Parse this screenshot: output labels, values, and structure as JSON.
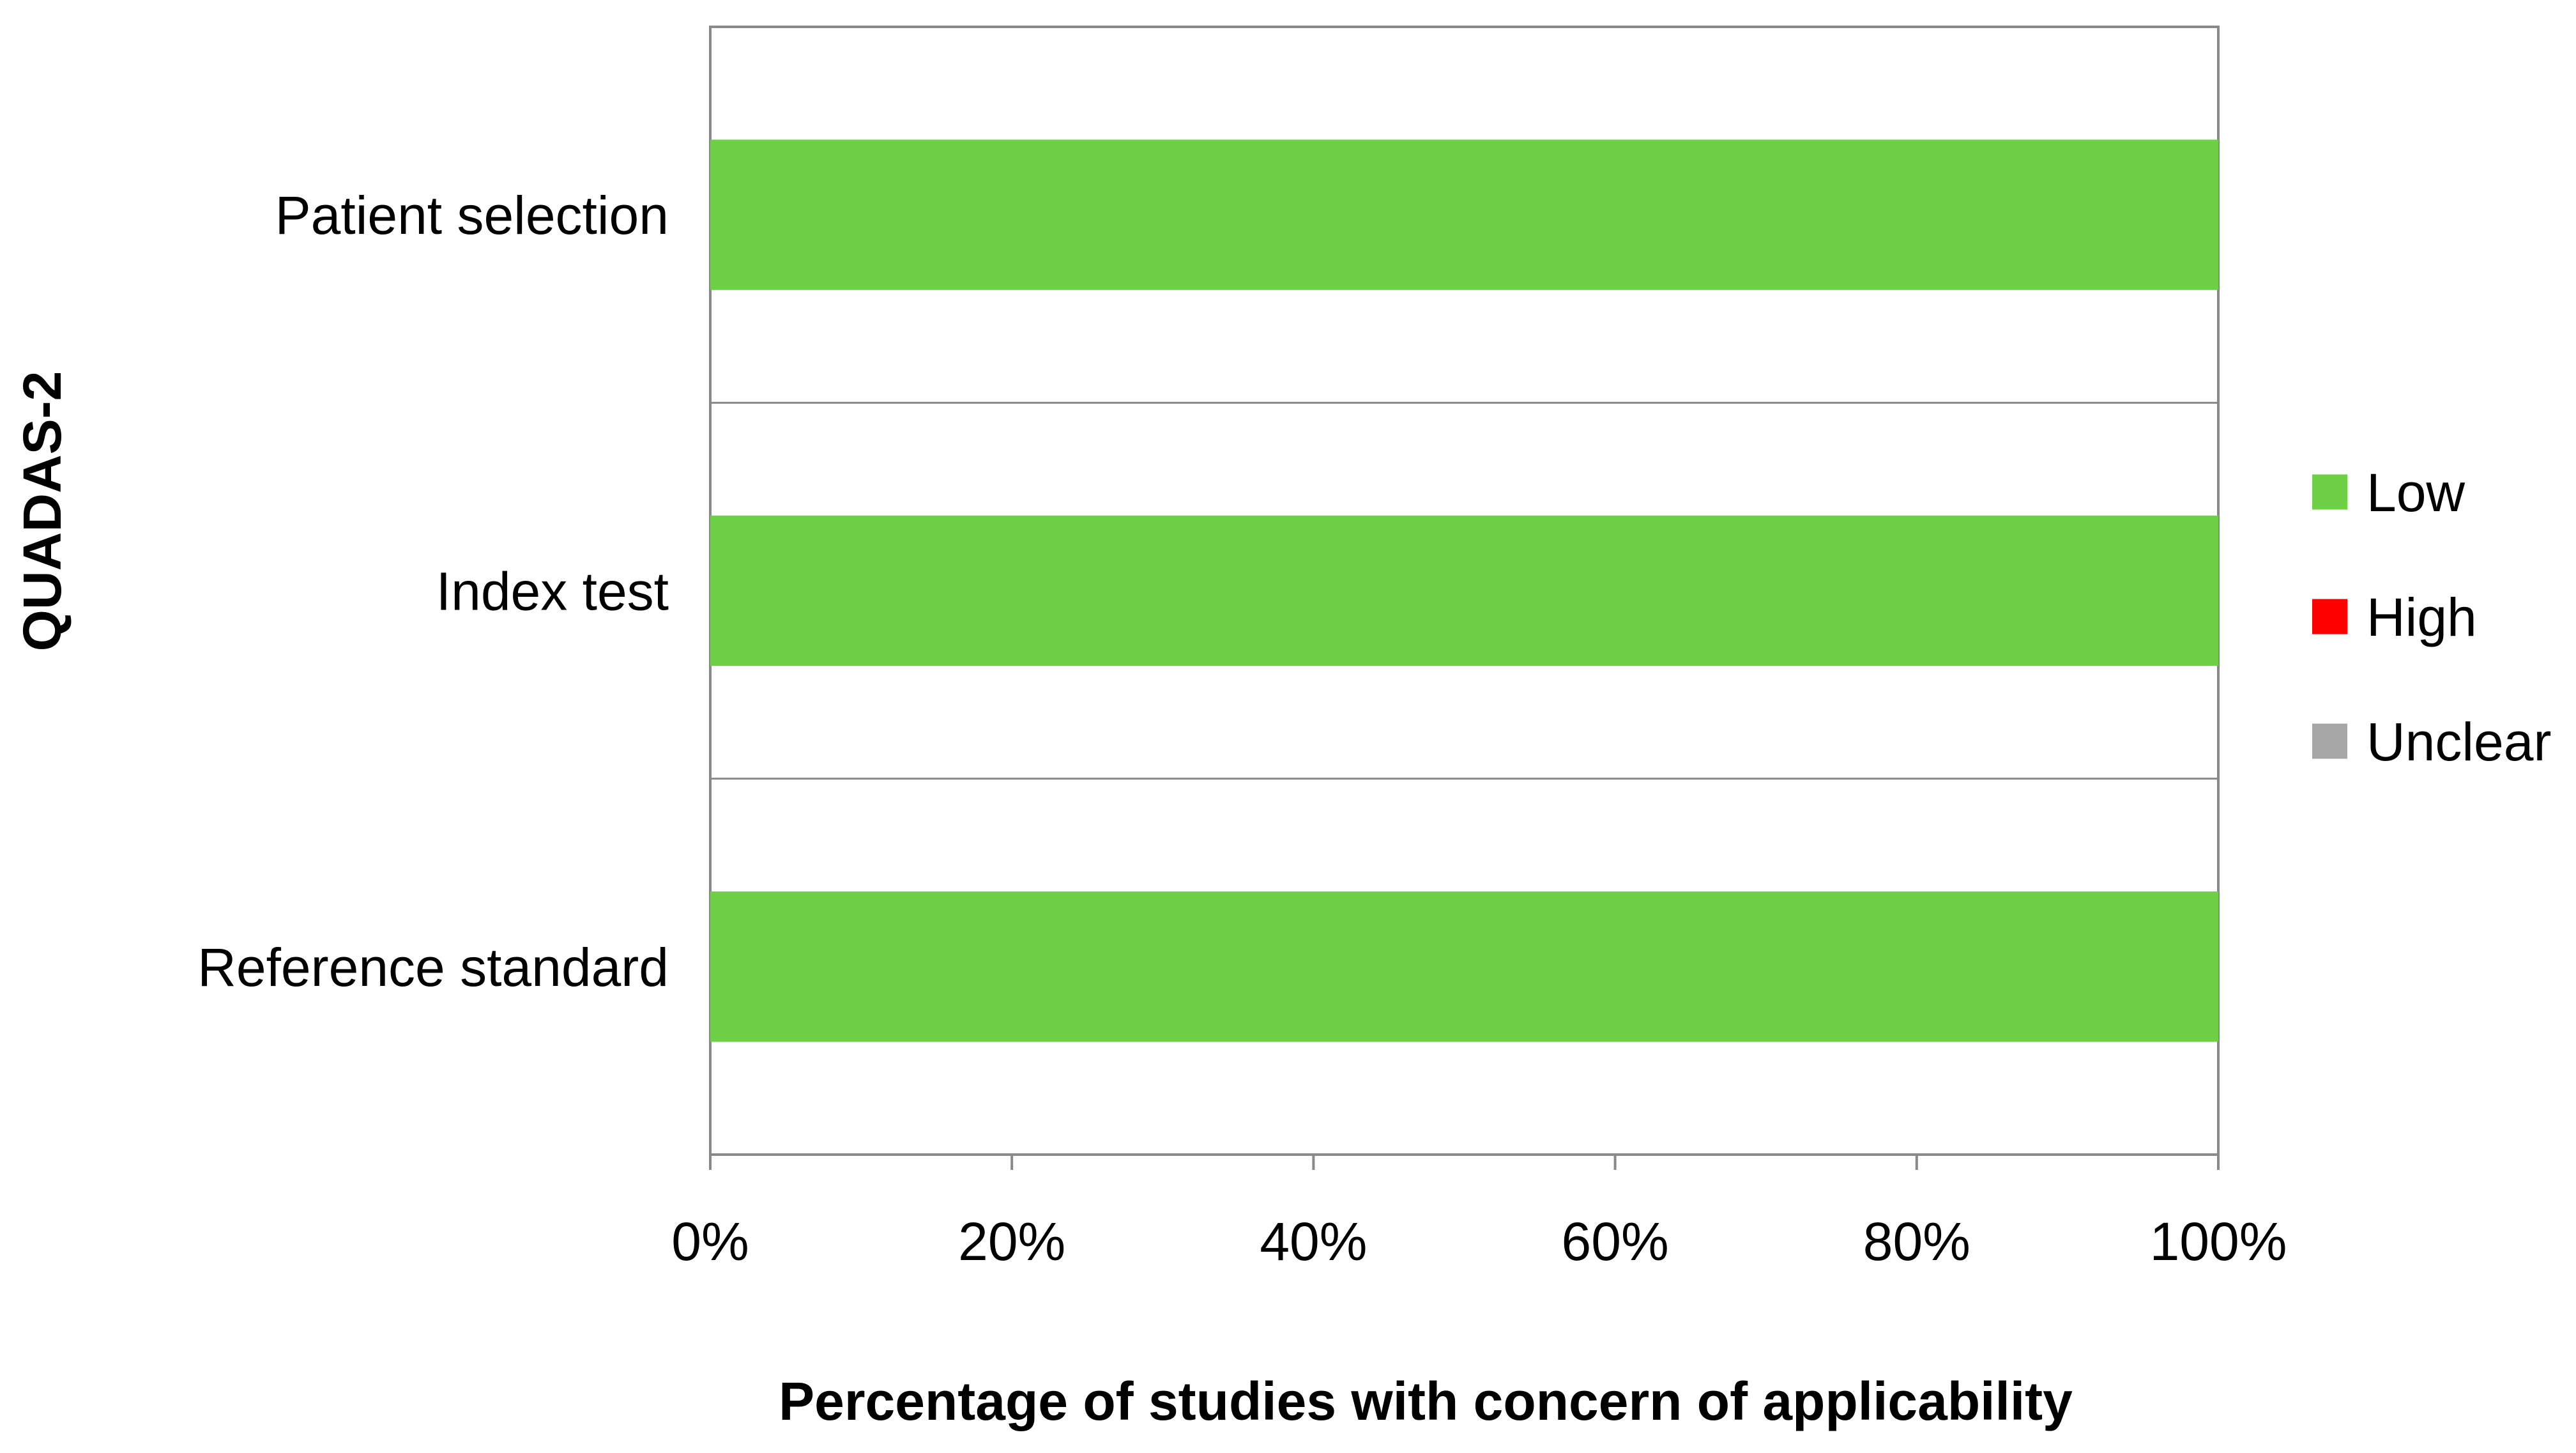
{
  "chart_data": {
    "type": "bar",
    "orientation": "horizontal",
    "stacked": true,
    "categories": [
      "Patient selection",
      "Index test",
      "Reference standard"
    ],
    "series": [
      {
        "name": "Low",
        "color": "#6ed145",
        "values": [
          100,
          100,
          100
        ]
      },
      {
        "name": "High",
        "color": "#ff0000",
        "values": [
          0,
          0,
          0
        ]
      },
      {
        "name": "Unclear",
        "color": "#a6a6a6",
        "values": [
          0,
          0,
          0
        ]
      }
    ],
    "xlabel": "Percentage of studies with concern of applicability",
    "ylabel": "QUADAS-2",
    "xlim": [
      0,
      100
    ],
    "xticks": [
      0,
      20,
      40,
      60,
      80,
      100
    ],
    "xtick_labels": [
      "0%",
      "20%",
      "40%",
      "60%",
      "80%",
      "100%"
    ],
    "grid": "horizontal category separators",
    "legend_position": "right"
  }
}
